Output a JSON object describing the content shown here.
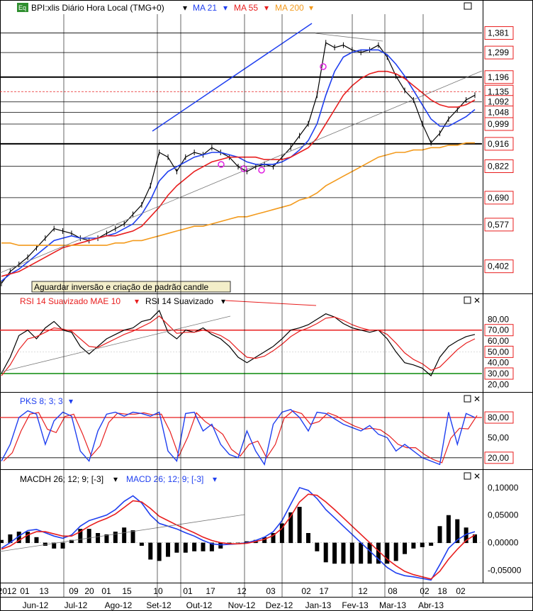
{
  "colors": {
    "price": "#000000",
    "ma21": "#1f3ff0",
    "ma55": "#e81e1e",
    "ma200": "#f39a1c",
    "trend_blue": "#1f3ff0",
    "hline_red": "#e81e1e",
    "hline_green": "#0a8a0a",
    "annotation_bg": "#f3eec9",
    "marker": "#e020e0",
    "level_box_border": "#e81e1e",
    "grey_line": "#777777"
  },
  "header": {
    "eq_icon": "Eq",
    "symbol": "BPI:xlis Diário Hora Local (TMG+0)",
    "ma21": "MA 21",
    "ma55": "MA 55",
    "ma200": "MA 200"
  },
  "annotation": "Aguardar inversão e criação de padrão candle",
  "chart_data": [
    {
      "type": "line",
      "title": "BPI:xlis Diário Hora Local (TMG+0)",
      "price_levels": [
        "1,381",
        "1,299",
        "1,196",
        "1,135",
        "1,092",
        "1,048",
        "0,999",
        "0,916",
        "0,822",
        "0,690",
        "0,577",
        "0,402"
      ],
      "ylim": [
        0.3,
        1.46
      ],
      "x": [
        0,
        12,
        24,
        36,
        48,
        60,
        72,
        84,
        96,
        108,
        120,
        132,
        144,
        156,
        168,
        180,
        192,
        204,
        216,
        228,
        240,
        252,
        264,
        276,
        288,
        300,
        312,
        324,
        336,
        348,
        360,
        372,
        384,
        396,
        408,
        420,
        432,
        444,
        456,
        468,
        480,
        492,
        504,
        516,
        528,
        540,
        552,
        564,
        576,
        588,
        600,
        612,
        624,
        636,
        648
      ],
      "series": [
        {
          "name": "price",
          "values": [
            0.33,
            0.38,
            0.41,
            0.44,
            0.48,
            0.52,
            0.56,
            0.55,
            0.54,
            0.52,
            0.51,
            0.52,
            0.54,
            0.56,
            0.58,
            0.62,
            0.66,
            0.74,
            0.88,
            0.86,
            0.8,
            0.86,
            0.88,
            0.87,
            0.9,
            0.88,
            0.86,
            0.82,
            0.8,
            0.82,
            0.83,
            0.82,
            0.86,
            0.9,
            0.95,
            1.0,
            1.12,
            1.34,
            1.32,
            1.33,
            1.31,
            1.3,
            1.31,
            1.33,
            1.28,
            1.2,
            1.14,
            1.1,
            1.0,
            0.92,
            0.96,
            1.02,
            1.06,
            1.1,
            1.12
          ]
        },
        {
          "name": "MA 21",
          "values": [
            0.34,
            0.37,
            0.39,
            0.42,
            0.45,
            0.48,
            0.51,
            0.52,
            0.53,
            0.52,
            0.52,
            0.52,
            0.53,
            0.54,
            0.56,
            0.58,
            0.62,
            0.68,
            0.76,
            0.8,
            0.82,
            0.84,
            0.86,
            0.87,
            0.88,
            0.88,
            0.87,
            0.86,
            0.84,
            0.83,
            0.83,
            0.83,
            0.84,
            0.86,
            0.89,
            0.93,
            1.0,
            1.12,
            1.22,
            1.28,
            1.3,
            1.31,
            1.31,
            1.31,
            1.29,
            1.25,
            1.2,
            1.14,
            1.08,
            1.02,
            0.99,
            0.99,
            1.01,
            1.03,
            1.06
          ]
        },
        {
          "name": "MA 55",
          "values": [
            0.36,
            0.37,
            0.38,
            0.4,
            0.42,
            0.44,
            0.46,
            0.48,
            0.49,
            0.5,
            0.51,
            0.52,
            0.53,
            0.53,
            0.54,
            0.55,
            0.57,
            0.61,
            0.65,
            0.7,
            0.74,
            0.77,
            0.8,
            0.82,
            0.84,
            0.85,
            0.86,
            0.86,
            0.86,
            0.86,
            0.85,
            0.85,
            0.85,
            0.86,
            0.88,
            0.9,
            0.94,
            1.0,
            1.06,
            1.12,
            1.16,
            1.19,
            1.21,
            1.22,
            1.22,
            1.21,
            1.19,
            1.16,
            1.13,
            1.1,
            1.08,
            1.07,
            1.07,
            1.08,
            1.1
          ]
        },
        {
          "name": "MA 200",
          "values": [
            0.5,
            0.5,
            0.49,
            0.49,
            0.49,
            0.49,
            0.49,
            0.49,
            0.49,
            0.49,
            0.49,
            0.49,
            0.49,
            0.5,
            0.5,
            0.51,
            0.51,
            0.52,
            0.53,
            0.54,
            0.55,
            0.56,
            0.57,
            0.57,
            0.58,
            0.59,
            0.6,
            0.61,
            0.61,
            0.62,
            0.63,
            0.64,
            0.65,
            0.66,
            0.68,
            0.69,
            0.71,
            0.74,
            0.76,
            0.78,
            0.8,
            0.82,
            0.84,
            0.86,
            0.87,
            0.88,
            0.88,
            0.89,
            0.89,
            0.9,
            0.9,
            0.91,
            0.91,
            0.92,
            0.92
          ]
        }
      ]
    },
    {
      "type": "line",
      "title": "RSI 14 Suavizado MAE 10",
      "legend": [
        "RSI 14 Suavizado MAE 10",
        "RSI 14 Suavizado"
      ],
      "tick_labels": [
        "80,00",
        "70,00",
        "60,00",
        "50,00",
        "40,00",
        "30,00",
        "20,00"
      ],
      "ylim": [
        15,
        92
      ],
      "series": [
        {
          "name": "RSI 14 Suavizado",
          "values": [
            30,
            45,
            65,
            70,
            62,
            72,
            78,
            70,
            68,
            55,
            48,
            55,
            62,
            66,
            70,
            72,
            78,
            80,
            88,
            68,
            62,
            70,
            68,
            72,
            66,
            62,
            55,
            45,
            40,
            45,
            50,
            55,
            62,
            70,
            72,
            75,
            80,
            85,
            82,
            76,
            72,
            70,
            68,
            70,
            62,
            50,
            40,
            38,
            35,
            28,
            45,
            55,
            60,
            64,
            66
          ]
        },
        {
          "name": "RSI 14 Suavizado MAE 10",
          "values": [
            28,
            38,
            52,
            62,
            64,
            68,
            72,
            71,
            69,
            62,
            55,
            54,
            58,
            62,
            66,
            69,
            73,
            77,
            83,
            75,
            67,
            68,
            68,
            70,
            68,
            65,
            60,
            52,
            45,
            44,
            46,
            51,
            57,
            64,
            69,
            72,
            76,
            81,
            82,
            79,
            75,
            72,
            70,
            70,
            66,
            58,
            49,
            43,
            39,
            33,
            36,
            44,
            52,
            58,
            62
          ]
        }
      ]
    },
    {
      "type": "line",
      "title": "PKS 8; 3; 3",
      "tick_labels": [
        "80,00",
        "50,00",
        "20,00"
      ],
      "ylim": [
        5,
        98
      ],
      "series": [
        {
          "name": "PKS 8; 3; 3",
          "values": [
            15,
            40,
            80,
            90,
            85,
            40,
            75,
            88,
            82,
            30,
            15,
            60,
            85,
            88,
            82,
            88,
            86,
            82,
            88,
            30,
            15,
            86,
            88,
            60,
            70,
            40,
            25,
            20,
            60,
            30,
            10,
            70,
            88,
            92,
            80,
            60,
            88,
            86,
            78,
            70,
            65,
            60,
            68,
            55,
            50,
            30,
            40,
            30,
            20,
            15,
            10,
            88,
            40,
            86,
            80
          ]
        }
      ]
    },
    {
      "type": "line",
      "title": "MACD 26; 12; 9; [-3]",
      "legend": [
        "MACDH 26; 12; 9; [-3]",
        "MACD 26; 12; 9; [-3]"
      ],
      "tick_labels": [
        "0,10000",
        "0,05000",
        "0,00000",
        "-0,05000"
      ],
      "ylim": [
        -0.07,
        0.105
      ],
      "series": [
        {
          "name": "MACD 26; 12; 9; [-3]",
          "values": [
            -0.01,
            0.0,
            0.012,
            0.022,
            0.024,
            0.018,
            0.012,
            0.008,
            0.014,
            0.03,
            0.04,
            0.045,
            0.05,
            0.06,
            0.075,
            0.085,
            0.072,
            0.05,
            0.035,
            0.03,
            0.025,
            0.018,
            0.012,
            0.004,
            -0.002,
            -0.004,
            -0.003,
            -0.002,
            0.0,
            0.004,
            0.01,
            0.02,
            0.04,
            0.07,
            0.1,
            0.095,
            0.08,
            0.06,
            0.045,
            0.03,
            0.015,
            0.0,
            -0.015,
            -0.03,
            -0.045,
            -0.055,
            -0.06,
            -0.062,
            -0.065,
            -0.068,
            -0.04,
            -0.01,
            0.005,
            0.015,
            0.02
          ]
        },
        {
          "name": "MACD signal",
          "values": [
            -0.012,
            -0.006,
            0.004,
            0.014,
            0.02,
            0.02,
            0.016,
            0.012,
            0.012,
            0.02,
            0.03,
            0.038,
            0.044,
            0.052,
            0.064,
            0.076,
            0.074,
            0.062,
            0.048,
            0.04,
            0.032,
            0.025,
            0.018,
            0.01,
            0.004,
            0.0,
            -0.002,
            -0.002,
            -0.001,
            0.002,
            0.006,
            0.013,
            0.026,
            0.048,
            0.074,
            0.088,
            0.086,
            0.074,
            0.06,
            0.045,
            0.03,
            0.015,
            0.0,
            -0.015,
            -0.03,
            -0.042,
            -0.052,
            -0.058,
            -0.062,
            -0.066,
            -0.052,
            -0.03,
            -0.012,
            0.004,
            0.014
          ]
        }
      ]
    }
  ],
  "x_axis": {
    "day_ticks": [
      "2012",
      "01",
      "13",
      "09",
      "20",
      "01",
      "15",
      "10",
      "01",
      "17",
      "12",
      "03",
      "02",
      "17",
      "12",
      "08",
      "02",
      "18",
      "02"
    ],
    "month_labels": [
      "Jun-12",
      "Jul-12",
      "Ago-12",
      "Set-12",
      "Out-12",
      "Nov-12",
      "Dez-12",
      "Jan-13",
      "Fev-13",
      "Mar-13",
      "Abr-13"
    ]
  },
  "icons": [
    "eq-icon",
    "square-icon",
    "close-icon",
    "dropdown-arrow-icon"
  ]
}
